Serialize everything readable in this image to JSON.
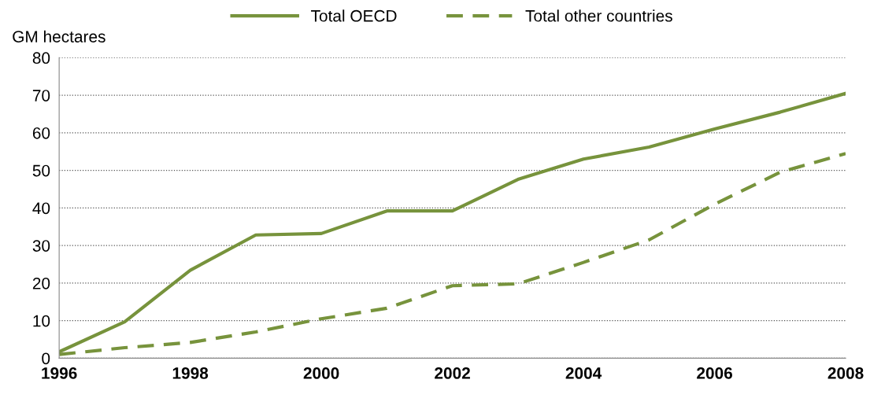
{
  "chart_data": {
    "type": "line",
    "ylabel": "GM hectares",
    "x": [
      1996,
      1997,
      1998,
      1999,
      2000,
      2001,
      2002,
      2003,
      2004,
      2005,
      2006,
      2007,
      2008
    ],
    "series": [
      {
        "name": "Total OECD",
        "color": "#77933c",
        "line_style": "solid",
        "values": [
          1.7,
          9.7,
          23.4,
          32.8,
          33.2,
          39.2,
          39.2,
          47.6,
          53.0,
          56.2,
          61.0,
          65.5,
          70.5
        ]
      },
      {
        "name": "Total other countries",
        "color": "#77933c",
        "line_style": "dashed",
        "values": [
          1.0,
          2.8,
          4.2,
          7.0,
          10.5,
          13.3,
          19.3,
          19.8,
          25.5,
          31.5,
          41.0,
          49.5,
          54.5
        ]
      }
    ],
    "xlim": [
      1996,
      2008
    ],
    "xticks": [
      1996,
      1998,
      2000,
      2002,
      2004,
      2006,
      2008
    ],
    "ylim": [
      0,
      80
    ],
    "yticks": [
      0,
      10,
      20,
      30,
      40,
      50,
      60,
      70,
      80
    ],
    "grid": "y",
    "legend": "top",
    "marker": "none"
  }
}
